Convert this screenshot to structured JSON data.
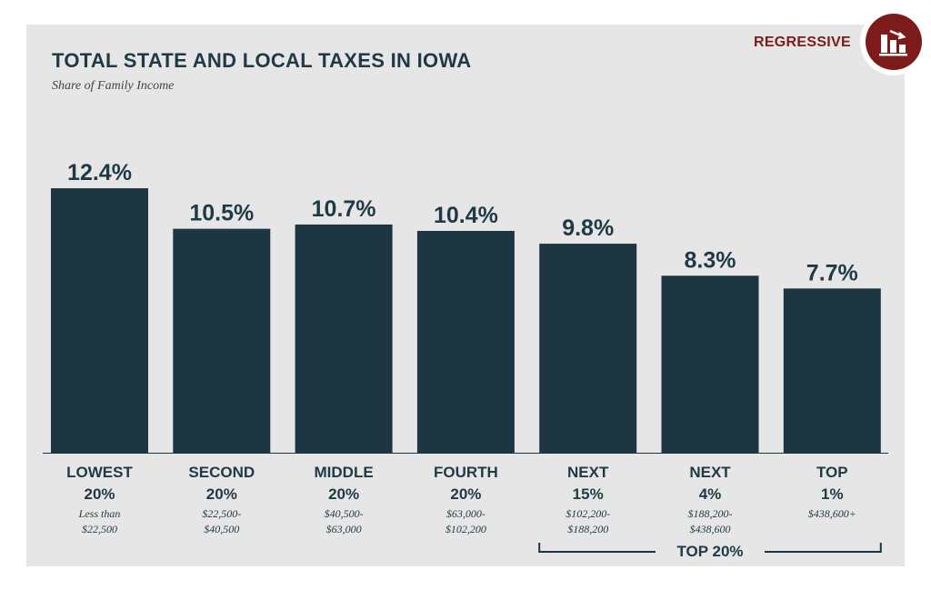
{
  "header": {
    "title": "TOTAL STATE AND LOCAL TAXES IN IOWA",
    "subtitle": "Share of Family Income",
    "badge_label": "REGRESSIVE",
    "badge_icon": "regressive-chart-icon"
  },
  "colors": {
    "bar": "#1e3641",
    "text": "#1f3a45",
    "accent": "#7d1a1a",
    "panel": "#e6e6e6"
  },
  "chart_data": {
    "type": "bar",
    "title": "TOTAL STATE AND LOCAL TAXES IN IOWA",
    "subtitle": "Share of Family Income",
    "xlabel": "",
    "ylabel": "Share of Family Income",
    "ylim": [
      0,
      13
    ],
    "grid": false,
    "categories": [
      {
        "label_line1": "LOWEST",
        "label_line2": "20%",
        "range_line1": "Less than",
        "range_line2": "$22,500"
      },
      {
        "label_line1": "SECOND",
        "label_line2": "20%",
        "range_line1": "$22,500-",
        "range_line2": "$40,500"
      },
      {
        "label_line1": "MIDDLE",
        "label_line2": "20%",
        "range_line1": "$40,500-",
        "range_line2": "$63,000"
      },
      {
        "label_line1": "FOURTH",
        "label_line2": "20%",
        "range_line1": "$63,000-",
        "range_line2": "$102,200"
      },
      {
        "label_line1": "NEXT",
        "label_line2": "15%",
        "range_line1": "$102,200-",
        "range_line2": "$188,200"
      },
      {
        "label_line1": "NEXT",
        "label_line2": "4%",
        "range_line1": "$188,200-",
        "range_line2": "$438,600"
      },
      {
        "label_line1": "TOP",
        "label_line2": "1%",
        "range_line1": "$438,600+",
        "range_line2": ""
      }
    ],
    "values": [
      12.4,
      10.5,
      10.7,
      10.4,
      9.8,
      8.3,
      7.7
    ],
    "value_labels": [
      "12.4%",
      "10.5%",
      "10.7%",
      "10.4%",
      "9.8%",
      "8.3%",
      "7.7%"
    ],
    "group_bracket": {
      "label": "TOP 20%",
      "from_index": 4,
      "to_index": 6
    }
  }
}
